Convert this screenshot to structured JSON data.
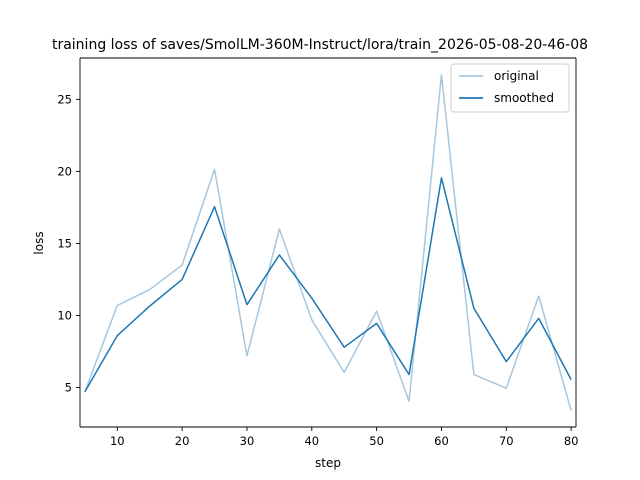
{
  "chart_data": {
    "type": "line",
    "title": "training loss of saves/SmolLM-360M-Instruct/lora/train_2026-05-08-20-46-08",
    "xlabel": "step",
    "ylabel": "loss",
    "xlim": [
      4.25,
      80.75
    ],
    "ylim": [
      2.26,
      27.87
    ],
    "xticks": [
      10,
      20,
      30,
      40,
      50,
      60,
      70,
      80
    ],
    "yticks": [
      5,
      10,
      15,
      20,
      25
    ],
    "grid": false,
    "legend_position": "top-right",
    "x": [
      5,
      10,
      15,
      20,
      25,
      30,
      35,
      40,
      45,
      50,
      55,
      60,
      65,
      70,
      75,
      80
    ],
    "series": [
      {
        "name": "original",
        "color": "#a6c7de",
        "values": [
          4.7,
          10.7,
          11.8,
          13.5,
          20.15,
          7.2,
          16.0,
          9.7,
          6.05,
          10.3,
          4.05,
          26.7,
          5.9,
          4.95,
          11.35,
          3.4
        ]
      },
      {
        "name": "smoothed",
        "color": "#1f77b4",
        "values": [
          4.7,
          8.6,
          10.65,
          12.5,
          17.55,
          10.75,
          14.2,
          11.2,
          7.8,
          9.45,
          5.9,
          19.55,
          10.5,
          6.8,
          9.8,
          5.55
        ]
      }
    ]
  }
}
